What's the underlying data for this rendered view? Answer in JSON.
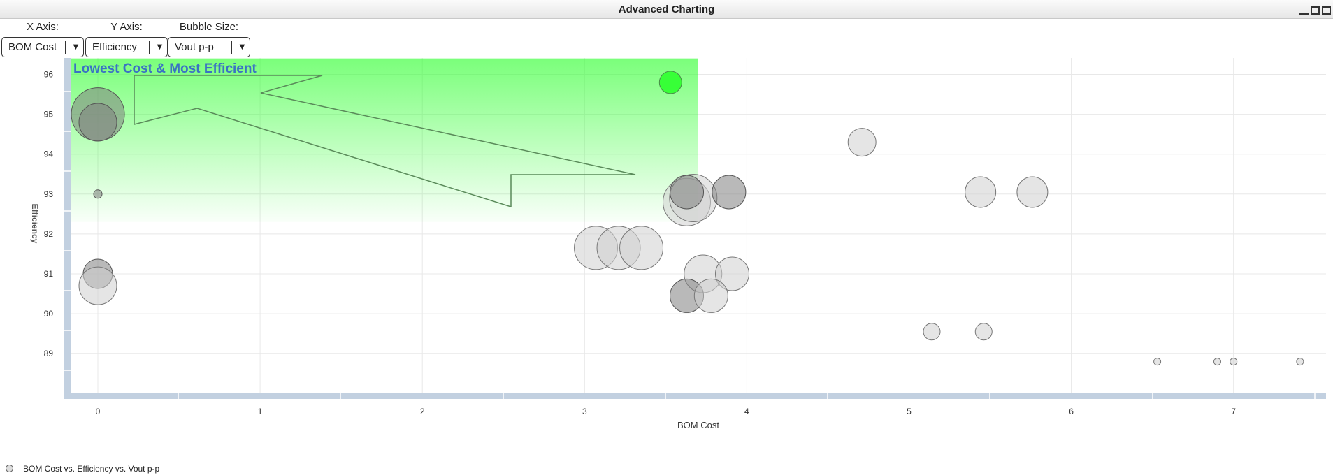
{
  "window": {
    "title": "Advanced Charting"
  },
  "controls": [
    {
      "label": "X Axis:",
      "value": "BOM Cost"
    },
    {
      "label": "Y Axis:",
      "value": "Efficiency"
    },
    {
      "label": "Bubble Size:",
      "value": "Vout p-p"
    }
  ],
  "colors": {
    "highlight": "#33ff33",
    "bubble": "#d0d0d0",
    "bubble_dark": "#808080",
    "axis_bar": "#c2d0e0",
    "region_text": "#3a72c4"
  },
  "chart_data": {
    "type": "scatter",
    "title": "",
    "xlabel": "BOM Cost",
    "ylabel": "Efficiency",
    "xlim": [
      -0.2,
      7.6
    ],
    "ylim": [
      88,
      96.4
    ],
    "xticks": [
      "0",
      "1",
      "2",
      "3",
      "4",
      "5",
      "6",
      "7"
    ],
    "yticks": [
      "89",
      "90",
      "91",
      "92",
      "93",
      "94",
      "95",
      "96"
    ],
    "grid": true,
    "legend": "bottom-left",
    "region": {
      "label": "Lowest Cost & Most Efficient",
      "x": [
        -0.2,
        3.7
      ],
      "y": [
        92.3,
        96.4
      ]
    },
    "series": [
      {
        "name": "BOM Cost vs. Efficiency vs. Vout p-p",
        "points": [
          {
            "x": 3.53,
            "y": 95.8,
            "size": 16,
            "highlight": true
          },
          {
            "x": 0.0,
            "y": 95.0,
            "size": 38,
            "dark": true
          },
          {
            "x": 0.0,
            "y": 94.8,
            "size": 27,
            "dark": true
          },
          {
            "x": 0.0,
            "y": 93.0,
            "size": 6,
            "dark": true
          },
          {
            "x": 0.0,
            "y": 91.0,
            "size": 21,
            "dark": true
          },
          {
            "x": 0.0,
            "y": 90.7,
            "size": 27
          },
          {
            "x": 3.07,
            "y": 91.65,
            "size": 31
          },
          {
            "x": 3.21,
            "y": 91.65,
            "size": 31
          },
          {
            "x": 3.35,
            "y": 91.65,
            "size": 31
          },
          {
            "x": 3.63,
            "y": 92.8,
            "size": 34
          },
          {
            "x": 3.67,
            "y": 92.9,
            "size": 34
          },
          {
            "x": 3.63,
            "y": 93.05,
            "size": 24,
            "dark": true
          },
          {
            "x": 3.89,
            "y": 93.05,
            "size": 24,
            "dark": true
          },
          {
            "x": 3.73,
            "y": 91.0,
            "size": 27
          },
          {
            "x": 3.91,
            "y": 91.0,
            "size": 24
          },
          {
            "x": 3.63,
            "y": 90.45,
            "size": 24,
            "dark": true
          },
          {
            "x": 3.78,
            "y": 90.45,
            "size": 24
          },
          {
            "x": 4.71,
            "y": 94.3,
            "size": 20
          },
          {
            "x": 5.44,
            "y": 93.05,
            "size": 22
          },
          {
            "x": 5.76,
            "y": 93.05,
            "size": 22
          },
          {
            "x": 5.14,
            "y": 89.55,
            "size": 12
          },
          {
            "x": 5.46,
            "y": 89.55,
            "size": 12
          },
          {
            "x": 6.53,
            "y": 88.8,
            "size": 5
          },
          {
            "x": 6.9,
            "y": 88.8,
            "size": 5
          },
          {
            "x": 7.0,
            "y": 88.8,
            "size": 5
          },
          {
            "x": 7.41,
            "y": 88.8,
            "size": 5
          }
        ]
      }
    ]
  }
}
